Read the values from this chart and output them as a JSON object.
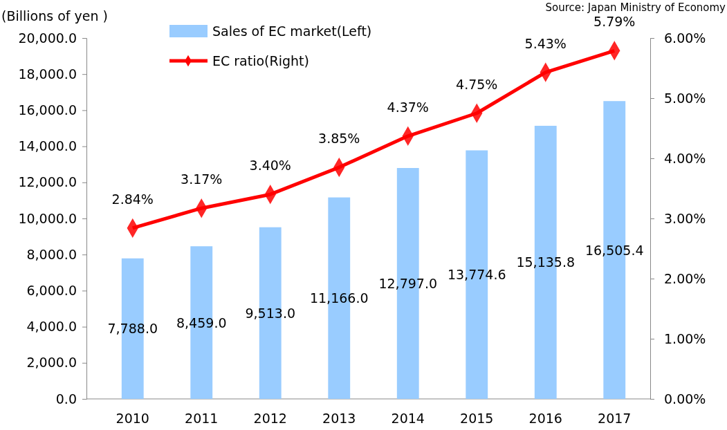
{
  "chart_data": {
    "type": "bar",
    "ylabel": "(Billions of yen )",
    "annotations": [
      "Source: Japan Ministry of Economy"
    ],
    "categories": [
      "2010",
      "2011",
      "2012",
      "2013",
      "2014",
      "2015",
      "2016",
      "2017"
    ],
    "series": [
      {
        "name": "Sales of EC market(Left)",
        "color": "#99ccff",
        "values": [
          7788.0,
          8459.0,
          9513.0,
          11166.0,
          12797.0,
          13774.6,
          15135.8,
          16505.4
        ],
        "value_labels": [
          "7,788.0",
          "8,459.0",
          "9,513.0",
          "11,166.0",
          "12,797.0",
          "13,774.6",
          "15,135.8",
          "16,505.4"
        ]
      },
      {
        "name": "EC ratio(Right)",
        "type": "line",
        "axis": "y2",
        "color": "#ff0000",
        "marker": "diamond",
        "values": [
          2.84,
          3.17,
          3.4,
          3.85,
          4.37,
          4.75,
          5.43,
          5.79
        ],
        "value_labels": [
          "2.84%",
          "3.17%",
          "3.40%",
          "3.85%",
          "4.37%",
          "4.75%",
          "5.43%",
          "5.79%"
        ]
      }
    ],
    "ylim": [
      0,
      20000
    ],
    "yticks": [
      {
        "value": 0,
        "label": "0.0"
      },
      {
        "value": 2000,
        "label": "2,000.0"
      },
      {
        "value": 4000,
        "label": "4,000.0"
      },
      {
        "value": 6000,
        "label": "6,000.0"
      },
      {
        "value": 8000,
        "label": "8,000.0"
      },
      {
        "value": 10000,
        "label": "10,000.0"
      },
      {
        "value": 12000,
        "label": "12,000.0"
      },
      {
        "value": 14000,
        "label": "14,000.0"
      },
      {
        "value": 16000,
        "label": "16,000.0"
      },
      {
        "value": 18000,
        "label": "18,000.0"
      },
      {
        "value": 20000,
        "label": "20,000.0"
      }
    ],
    "y2lim": [
      0,
      6
    ],
    "y2ticks": [
      {
        "value": 0,
        "label": "0.00%"
      },
      {
        "value": 1,
        "label": "1.00%"
      },
      {
        "value": 2,
        "label": "2.00%"
      },
      {
        "value": 3,
        "label": "3.00%"
      },
      {
        "value": 4,
        "label": "4.00%"
      },
      {
        "value": 5,
        "label": "5.00%"
      },
      {
        "value": 6,
        "label": "6.00%"
      }
    ],
    "legend": "top left",
    "grid": false
  }
}
